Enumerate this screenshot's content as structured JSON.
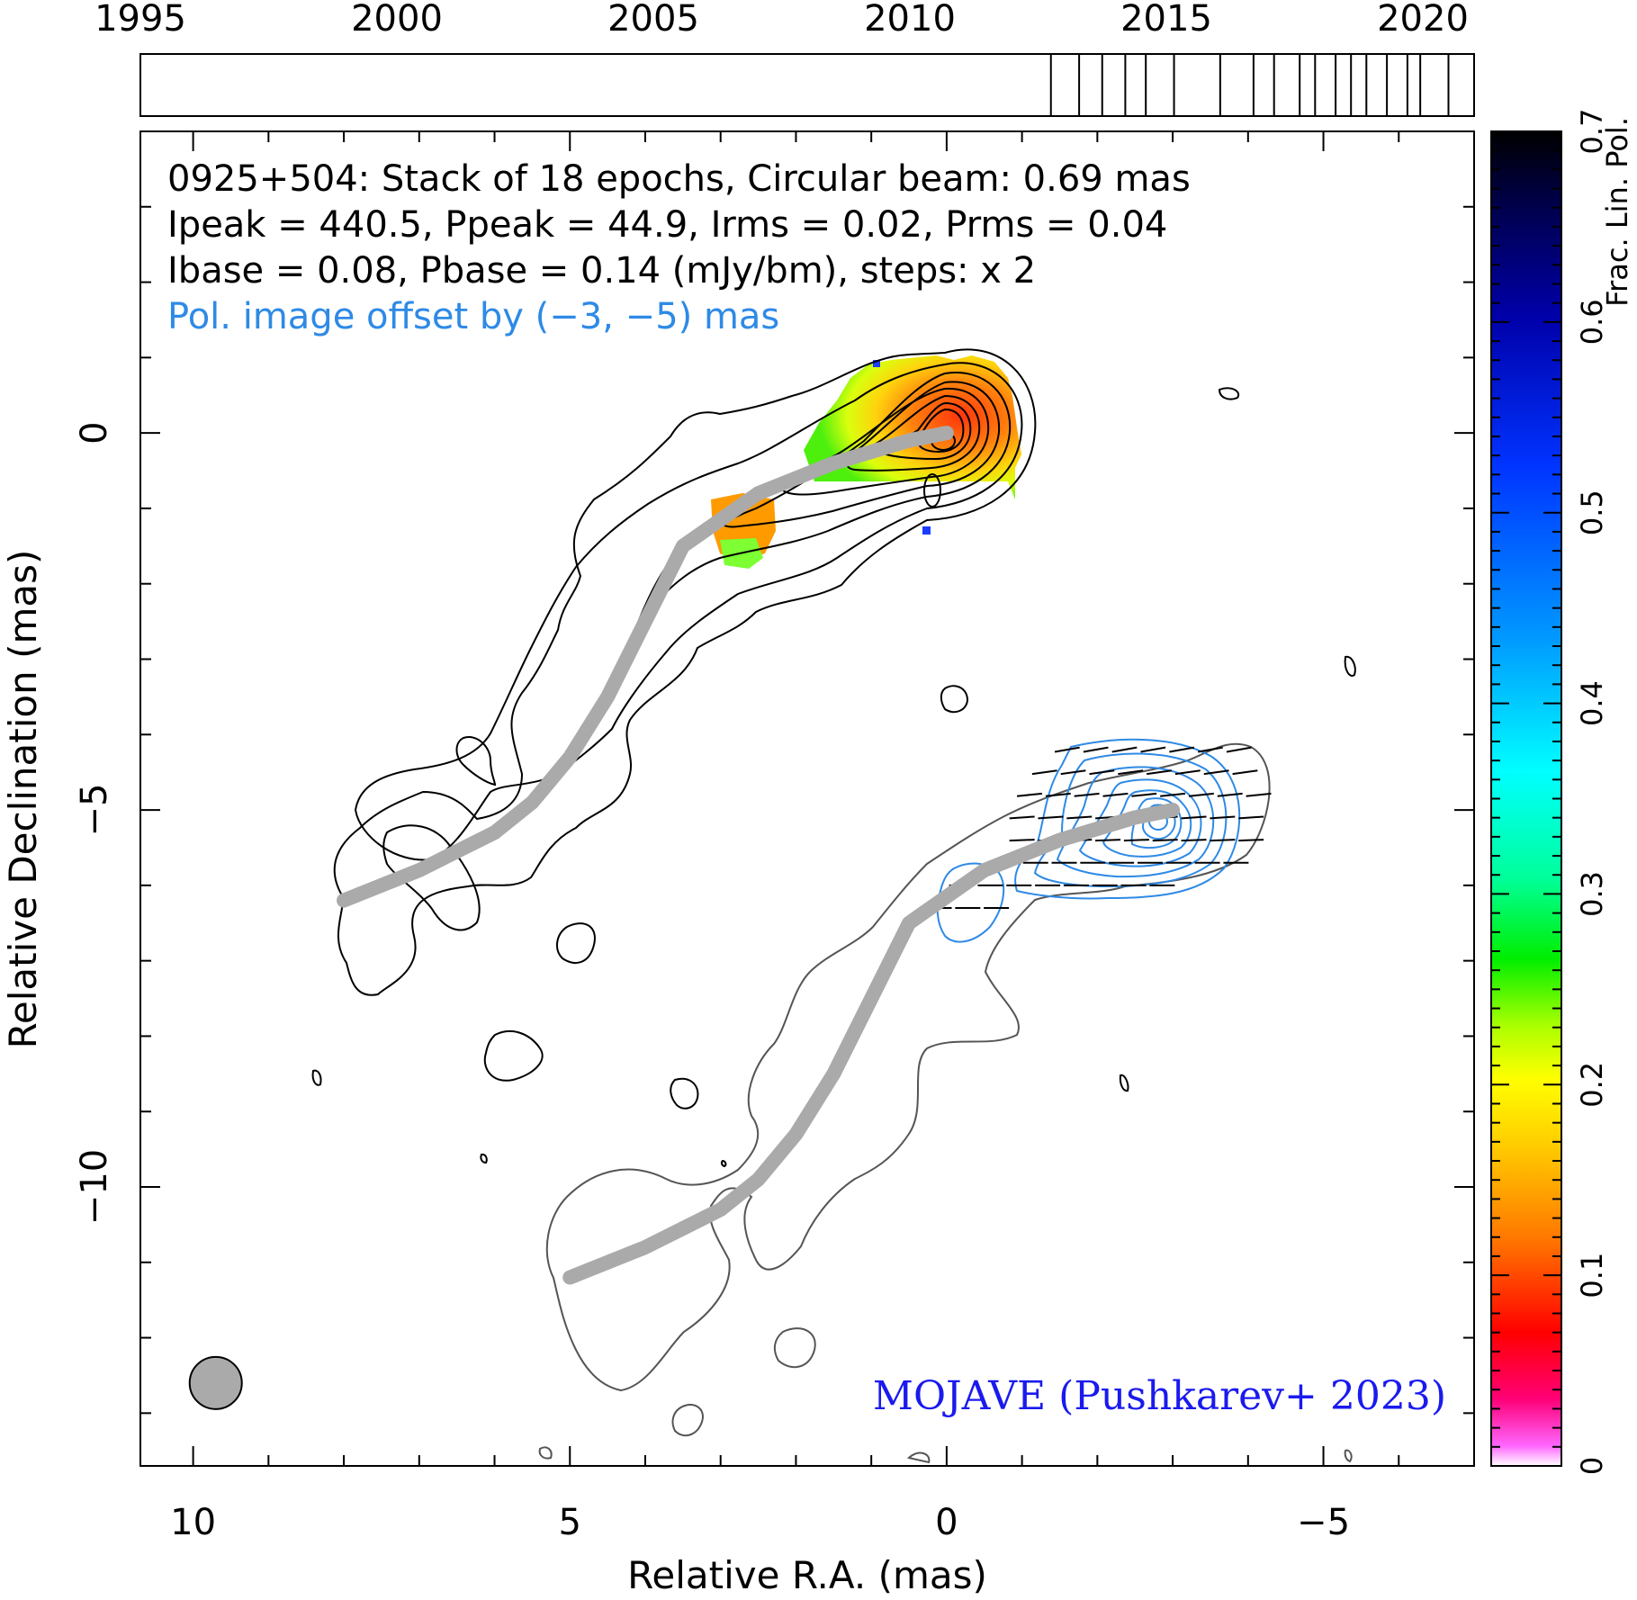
{
  "chart_data": {
    "type": "contour",
    "source": "0925+504",
    "annotations": {
      "line1": "0925+504: Stack of 18 epochs, Circular beam: 0.69 mas",
      "line2": "Ipeak = 440.5, Ppeak = 44.9, Irms = 0.02, Prms = 0.04",
      "line3": "Ibase = 0.08, Pbase = 0.14 (mJy/bm), steps: x 2",
      "line4": "Pol. image offset by (−3, −5) mas",
      "credit": "MOJAVE (Pushkarev+ 2023)"
    },
    "xlabel": "Relative R.A. (mas)",
    "ylabel": "Relative Declination (mas)",
    "xlim": [
      10.7,
      -7
    ],
    "ylim": [
      -13.7,
      4.0
    ],
    "xticks": [
      10,
      5,
      0,
      -5
    ],
    "xtick_labels": [
      "10",
      "5",
      "0",
      "−5"
    ],
    "yticks": [
      0,
      -5,
      -10
    ],
    "ytick_labels": [
      "0",
      "−5",
      "−10"
    ],
    "beam": {
      "diameter_mas": 0.69,
      "x": 9.7,
      "y": -12.6
    },
    "epoch_timeline": {
      "years": [
        1995,
        2000,
        2005,
        2010,
        2015,
        2020
      ],
      "range": [
        1995,
        2021
      ],
      "epochs": [
        2012.75,
        2013.3,
        2013.75,
        2014.2,
        2014.6,
        2015.15,
        2016.05,
        2016.7,
        2017.1,
        2017.6,
        2017.9,
        2018.3,
        2018.6,
        2018.9,
        2019.3,
        2019.7,
        2019.95,
        2020.5
      ]
    },
    "colorbar": {
      "label": "Frac. Lin. Pol.",
      "range": [
        0,
        0.7
      ],
      "ticks": [
        0,
        0.1,
        0.2,
        0.3,
        0.4,
        0.5,
        0.6,
        0.7
      ],
      "tick_labels": [
        "0",
        "0.1",
        "0.2",
        "0.3",
        "0.4",
        "0.5",
        "0.6",
        "0.7"
      ]
    },
    "ridgeline": [
      [
        8.0,
        -6.2
      ],
      [
        7.0,
        -5.8
      ],
      [
        6.0,
        -5.3
      ],
      [
        5.5,
        -4.9
      ],
      [
        5.0,
        -4.3
      ],
      [
        4.5,
        -3.5
      ],
      [
        4.0,
        -2.5
      ],
      [
        3.5,
        -1.5
      ],
      [
        2.5,
        -0.8
      ],
      [
        1.5,
        -0.4
      ],
      [
        0.5,
        -0.1
      ],
      [
        0.0,
        0.0
      ]
    ],
    "pol_offset": [
      -3,
      -5
    ],
    "colors": {
      "stokes_i_contours": "#000000",
      "pol_contours": "#2e8ae6",
      "ridgeline": "#aaaaaa",
      "offset_i_contours": "#555555",
      "pol_offset_text": "#2e8ae6",
      "credit_text": "#1a1aee"
    }
  }
}
